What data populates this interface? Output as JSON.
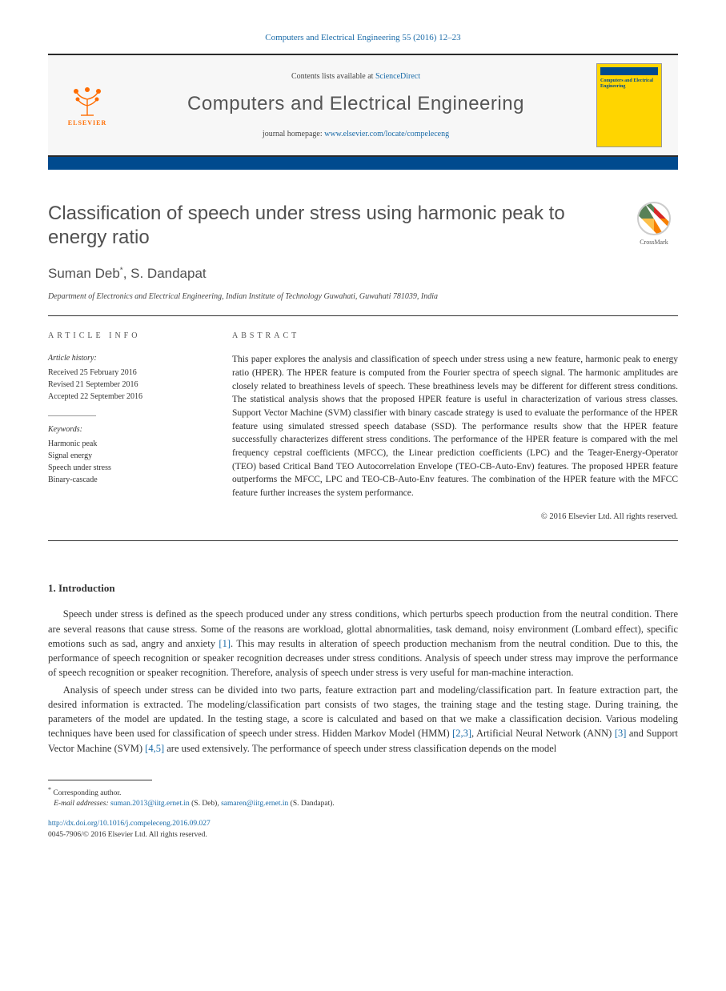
{
  "header": {
    "citation_prefix": "Computers and Electrical Engineering 55 (2016) 12–23",
    "contents_line_prefix": "Contents lists available at ",
    "contents_link": "ScienceDirect",
    "journal_name": "Computers and Electrical Engineering",
    "homepage_prefix": "journal homepage: ",
    "homepage_url": "www.elsevier.com/locate/compeleceng",
    "publisher_name": "ELSEVIER",
    "cover_title": "Computers and Electrical Engineering"
  },
  "crossmark": {
    "label": "CrossMark"
  },
  "title": "Classification of speech under stress using harmonic peak to energy ratio",
  "authors_html": "Suman Deb<sup>*</sup>, S. Dandapat",
  "affiliation": "Department of Electronics and Electrical Engineering, Indian Institute of Technology Guwahati, Guwahati 781039, India",
  "article_info": {
    "heading": "article info",
    "history_head": "Article history:",
    "received": "Received 25 February 2016",
    "revised": "Revised 21 September 2016",
    "accepted": "Accepted 22 September 2016",
    "keywords_head": "Keywords:",
    "keywords": [
      "Harmonic peak",
      "Signal energy",
      "Speech under stress",
      "Binary-cascade"
    ]
  },
  "abstract": {
    "heading": "abstract",
    "text": "This paper explores the analysis and classification of speech under stress using a new feature, harmonic peak to energy ratio (HPER). The HPER feature is computed from the Fourier spectra of speech signal. The harmonic amplitudes are closely related to breathiness levels of speech. These breathiness levels may be different for different stress conditions. The statistical analysis shows that the proposed HPER feature is useful in characterization of various stress classes. Support Vector Machine (SVM) classifier with binary cascade strategy is used to evaluate the performance of the HPER feature using simulated stressed speech database (SSD). The performance results show that the HPER feature successfully characterizes different stress conditions. The performance of the HPER feature is compared with the mel frequency cepstral coefficients (MFCC), the Linear prediction coefficients (LPC) and the Teager-Energy-Operator (TEO) based Critical Band TEO Autocorrelation Envelope (TEO-CB-Auto-Env) features. The proposed HPER feature outperforms the MFCC, LPC and TEO-CB-Auto-Env features. The combination of the HPER feature with the MFCC feature further increases the system performance.",
    "copyright": "© 2016 Elsevier Ltd. All rights reserved."
  },
  "sections": {
    "intro_heading": "1. Introduction",
    "para1_pre": "Speech under stress is defined as the speech produced under any stress conditions, which perturbs speech production from the neutral condition. There are several reasons that cause stress. Some of the reasons are workload, glottal abnormalities, task demand, noisy environment (Lombard effect), specific emotions such as sad, angry and anxiety ",
    "ref1": "[1]",
    "para1_post": ". This may results in alteration of speech production mechanism from the neutral condition. Due to this, the performance of speech recognition or speaker recognition decreases under stress conditions. Analysis of speech under stress may improve the performance of speech recognition or speaker recognition. Therefore, analysis of speech under stress is very useful for man-machine interaction.",
    "para2_pre": "Analysis of speech under stress can be divided into two parts, feature extraction part and modeling/classification part. In feature extraction part, the desired information is extracted. The modeling/classification part consists of two stages, the training stage and the testing stage. During training, the parameters of the model are updated. In the testing stage, a score is calculated and based on that we make a classification decision. Various modeling techniques have been used for classification of speech under stress. Hidden Markov Model (HMM) ",
    "ref23": "[2,3]",
    "para2_mid1": ", Artificial Neural Network (ANN) ",
    "ref3": "[3]",
    "para2_mid2": " and Support Vector Machine (SVM) ",
    "ref45": "[4,5]",
    "para2_post": " are used extensively. The performance of speech under stress classification depends on the model"
  },
  "footnotes": {
    "corr": "Corresponding author.",
    "email_label": "E-mail addresses: ",
    "email1": "suman.2013@iitg.ernet.in",
    "email1_owner": " (S. Deb), ",
    "email2": "samaren@iitg.ernet.in",
    "email2_owner": " (S. Dandapat)."
  },
  "footer": {
    "doi": "http://dx.doi.org/10.1016/j.compeleceng.2016.09.027",
    "issn_line": "0045-7906/© 2016 Elsevier Ltd. All rights reserved."
  },
  "colors": {
    "link": "#1a6ba8",
    "accent_bar": "#004a8e",
    "elsevier_orange": "#ff6c00",
    "cover_yellow": "#ffd500"
  }
}
